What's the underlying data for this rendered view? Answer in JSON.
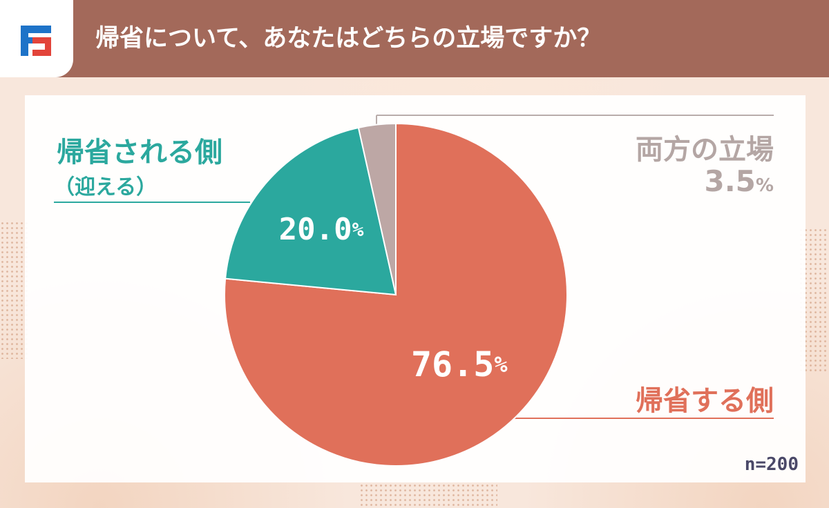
{
  "header": {
    "title": "帰省について、あなたはどちらの立場ですか？",
    "logo_icon": "brand-logo-icon"
  },
  "colors": {
    "header_bg": "#a3695a",
    "slice_main": "#e0705a",
    "slice_second": "#2ba89e",
    "slice_third": "#bda7a5"
  },
  "labels": {
    "teal_line1": "帰省される側",
    "teal_line2": "（迎える）",
    "gray_line1": "両方の立場",
    "gray_value": "3.5",
    "red_line1": "帰省する側",
    "percent": "%"
  },
  "sample_size": "n=200",
  "chart_data": {
    "type": "pie",
    "title": "帰省について、あなたはどちらの立場ですか？",
    "slices": [
      {
        "label": "帰省する側",
        "value": 76.5,
        "color": "#e0705a"
      },
      {
        "label": "帰省される側（迎える）",
        "value": 20.0,
        "color": "#2ba89e"
      },
      {
        "label": "両方の立場",
        "value": 3.5,
        "color": "#bda7a5"
      }
    ],
    "value_labels": [
      "76.5",
      "20.0",
      "3.5"
    ],
    "unit": "%",
    "note": "n=200"
  }
}
